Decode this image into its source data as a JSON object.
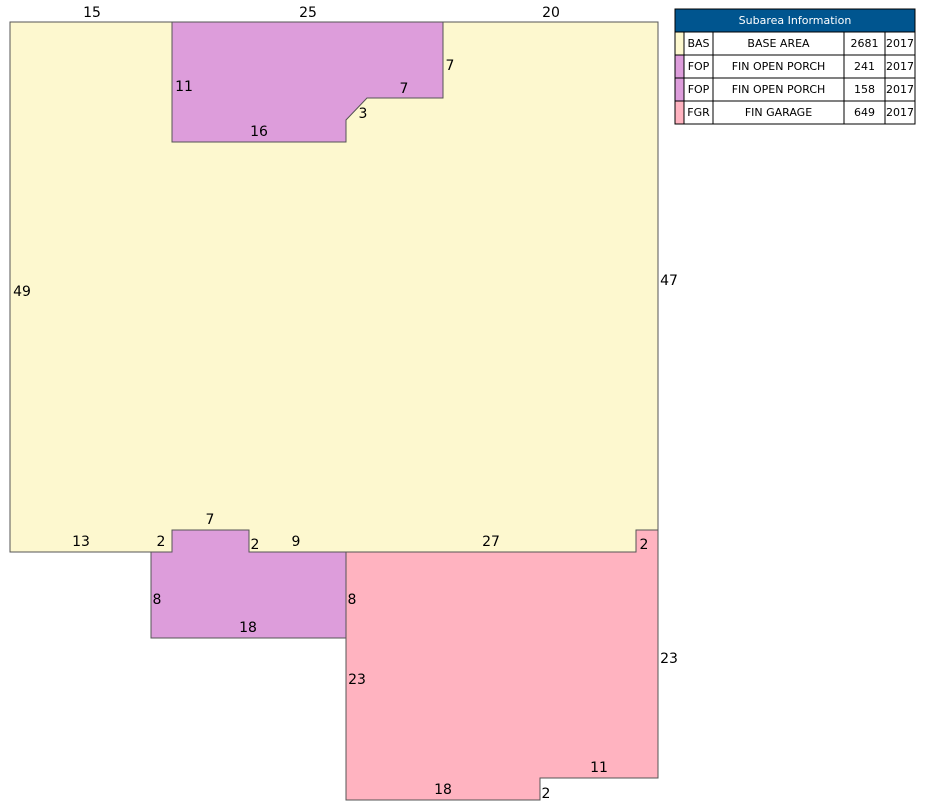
{
  "dimensions": [
    "15",
    "25",
    "20",
    "7",
    "11",
    "7",
    "3",
    "16",
    "49",
    "47",
    "7",
    "13",
    "2",
    "2",
    "9",
    "27",
    "2",
    "8",
    "8",
    "18",
    "23",
    "23",
    "11",
    "18",
    "2"
  ],
  "table": {
    "title": "Subarea Information",
    "rows": [
      [
        "BAS",
        "BASE AREA",
        "2681",
        "2017"
      ],
      [
        "FOP",
        "FIN OPEN PORCH",
        "241",
        "2017"
      ],
      [
        "FOP",
        "FIN OPEN PORCH",
        "158",
        "2017"
      ],
      [
        "FGR",
        "FIN GARAGE",
        "649",
        "2017"
      ]
    ]
  }
}
